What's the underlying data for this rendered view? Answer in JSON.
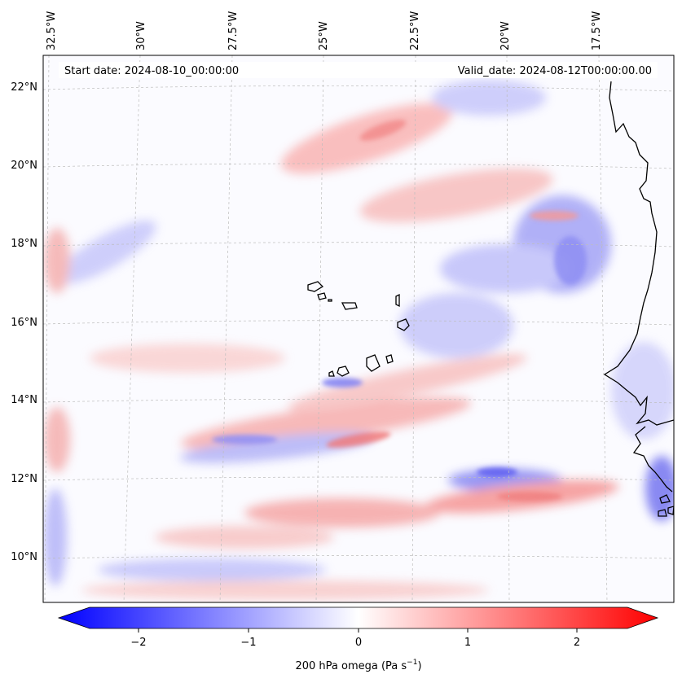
{
  "map": {
    "header_left": "Start date: 2024-08-10_00:00:00",
    "header_right": "Valid_date: 2024-08-12T00:00:00.00",
    "lon_labels": [
      "32.5°W",
      "30°W",
      "27.5°W",
      "25°W",
      "22.5°W",
      "20°W",
      "17.5°W"
    ],
    "lat_labels": [
      "22°N",
      "20°N",
      "18°N",
      "16°N",
      "14°N",
      "12°N",
      "10°N"
    ],
    "colors": {
      "negative": "#0000ff",
      "neutral": "#ffffff",
      "positive": "#ff0000",
      "coastline": "#000000",
      "gridline": "#bfbfbf"
    }
  },
  "colorbar": {
    "ticks": [
      "−2",
      "−1",
      "0",
      "1",
      "2"
    ],
    "label_main": "200 hPa omega (Pa s",
    "label_sup": "−1",
    "label_end": ")",
    "range": [
      -2.75,
      2.75
    ]
  }
}
